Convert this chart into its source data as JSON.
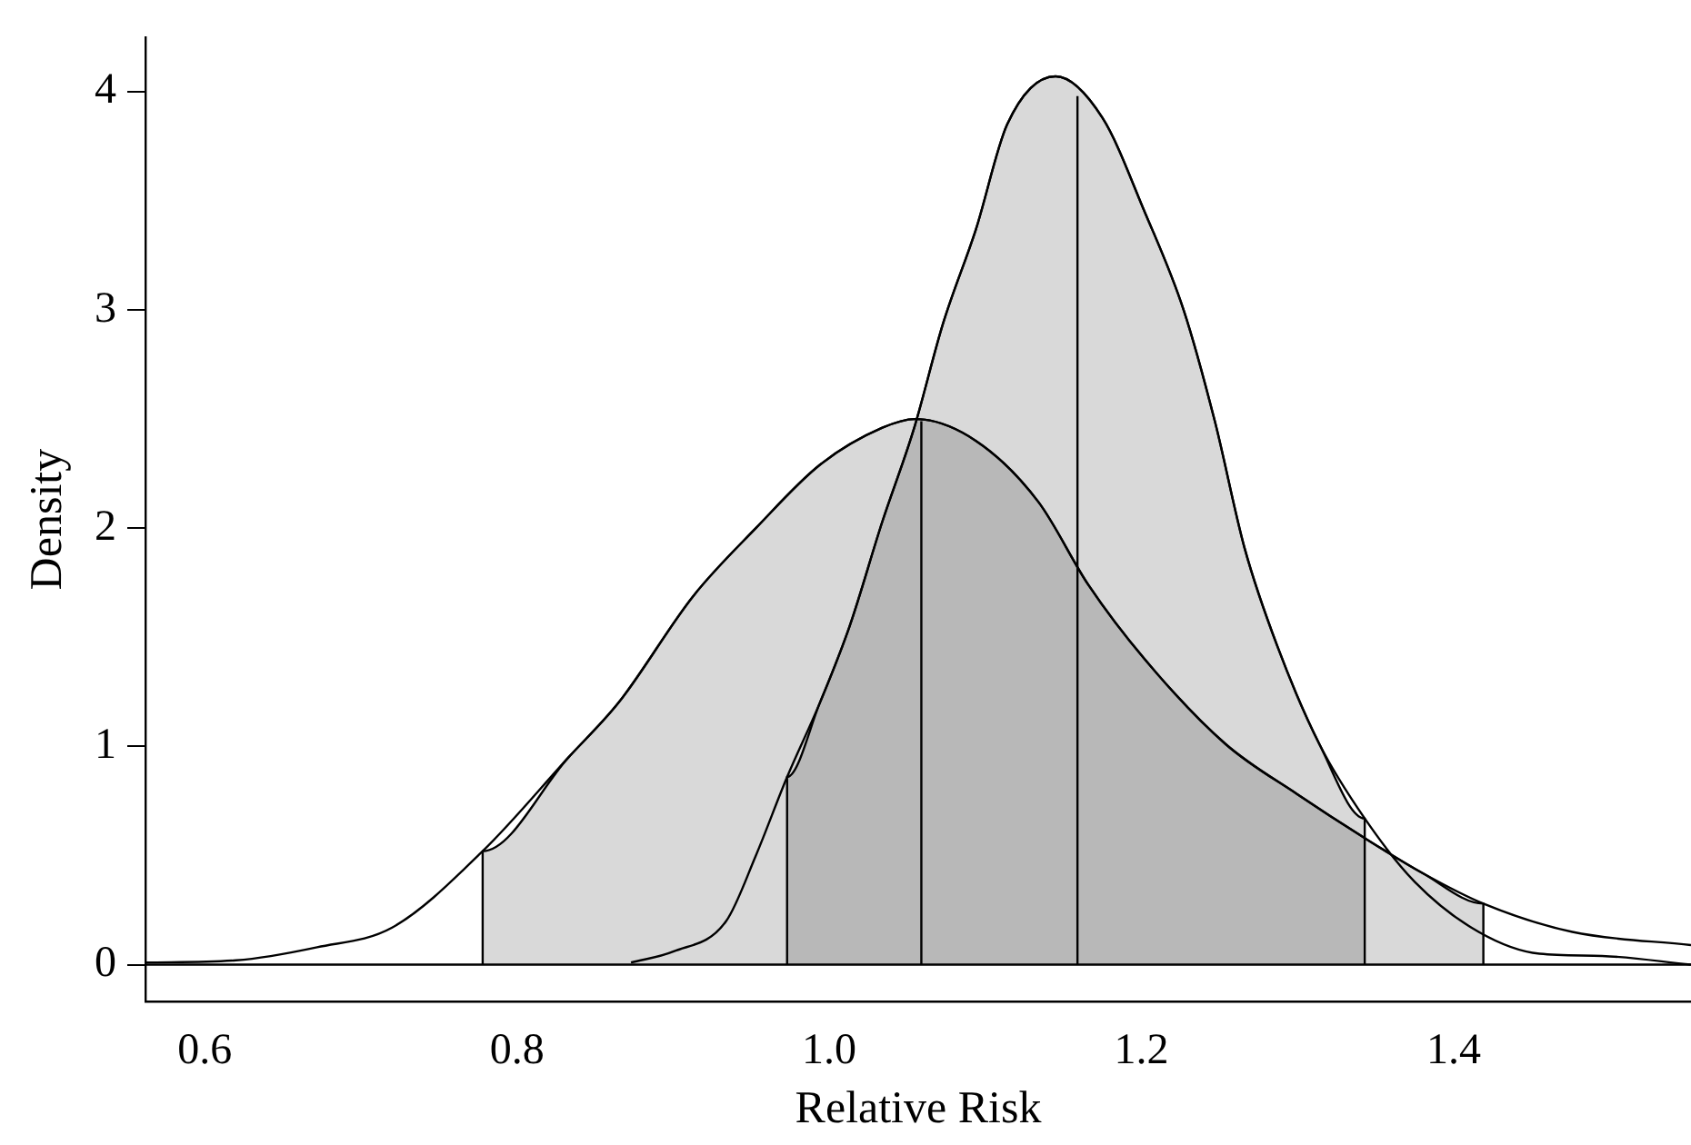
{
  "chart_data": {
    "type": "line",
    "xlabel": "Relative Risk",
    "ylabel": "Density",
    "xlim": [
      0.562,
      1.552
    ],
    "ylim": [
      -0.17,
      4.25
    ],
    "xticks": [
      0.6,
      0.8,
      {
        "value": 1,
        "label": "1.0"
      },
      1.2,
      1.4
    ],
    "yticks": [
      0,
      1,
      2,
      3,
      4
    ],
    "grid": false,
    "legend": false,
    "marker": "none",
    "line_style": "solid",
    "ref_lines": [
      {
        "axis": "y",
        "value": 0,
        "color": "#000000"
      }
    ],
    "series": [
      {
        "type": "area",
        "color": "#000000",
        "x": [
          0.778,
          0.778,
          0.833,
          0.865,
          0.913,
          0.953,
          0.994,
          1.034,
          1.055,
          1.094,
          1.134,
          1.166,
          1.202,
          1.254,
          1.3,
          1.343,
          1.38,
          1.419,
          1.419
        ],
        "values": [
          0,
          0.52,
          0.95,
          1.2,
          1.69,
          2.0,
          2.29,
          2.46,
          2.5,
          2.4,
          2.12,
          1.74,
          1.4,
          1.01,
          0.78,
          0.58,
          0.42,
          0.28,
          0
        ]
      },
      {
        "type": "area",
        "color": "#000000",
        "x": [
          0.973,
          0.973,
          0.994,
          1.013,
          1.034,
          1.054,
          1.073,
          1.094,
          1.114,
          1.145,
          1.175,
          1.202,
          1.227,
          1.247,
          1.266,
          1.287,
          1.314,
          1.343,
          1.343
        ],
        "values": [
          0,
          0.86,
          1.2,
          1.55,
          2.03,
          2.45,
          2.94,
          3.37,
          3.85,
          4.07,
          3.88,
          3.45,
          3.0,
          2.49,
          1.91,
          1.46,
          1.01,
          0.67,
          0
        ]
      },
      {
        "type": "line",
        "color": "#000000",
        "x": [
          0.562,
          0.62,
          0.672,
          0.72,
          0.778,
          0.833,
          0.865,
          0.913,
          0.953,
          0.994,
          1.034,
          1.055,
          1.094,
          1.134,
          1.166,
          1.202,
          1.254,
          1.3,
          1.343,
          1.38,
          1.419,
          1.476,
          1.552
        ],
        "values": [
          0.01,
          0.02,
          0.08,
          0.17,
          0.52,
          0.95,
          1.2,
          1.69,
          2.0,
          2.29,
          2.46,
          2.5,
          2.4,
          2.12,
          1.74,
          1.4,
          1.01,
          0.78,
          0.58,
          0.42,
          0.28,
          0.15,
          0.09
        ]
      },
      {
        "type": "line",
        "color": "#000000",
        "x": [
          0.873,
          0.9,
          0.934,
          0.953,
          0.973,
          0.994,
          1.013,
          1.034,
          1.054,
          1.073,
          1.094,
          1.114,
          1.145,
          1.175,
          1.202,
          1.227,
          1.247,
          1.266,
          1.287,
          1.314,
          1.343,
          1.375,
          1.416,
          1.455,
          1.495,
          1.552
        ],
        "values": [
          0.01,
          0.06,
          0.2,
          0.5,
          0.86,
          1.2,
          1.55,
          2.03,
          2.45,
          2.94,
          3.37,
          3.85,
          4.07,
          3.88,
          3.45,
          3.0,
          2.49,
          1.91,
          1.46,
          1.01,
          0.67,
          0.38,
          0.15,
          0.05,
          0.04,
          0
        ]
      },
      {
        "type": "line",
        "color": "#000000",
        "x": [
          1.059,
          1.059
        ],
        "values": [
          0,
          2.49
        ]
      },
      {
        "type": "line",
        "color": "#000000",
        "x": [
          1.159,
          1.159
        ],
        "values": [
          0,
          3.98
        ]
      }
    ]
  }
}
